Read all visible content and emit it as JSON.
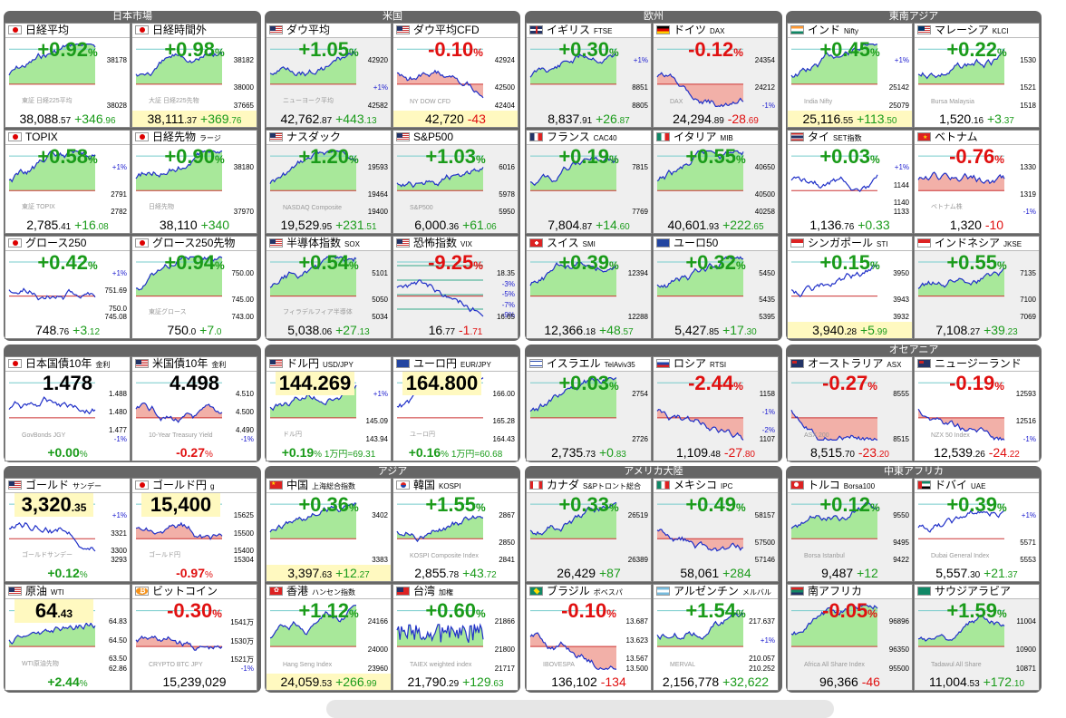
{
  "colors": {
    "up": "#1a9b1a",
    "down": "#e01010",
    "line": "#2030c8",
    "fill_green": "#a8e89a",
    "fill_red": "#f2b0a8",
    "yellow": "#fff9c0",
    "header_bg": "#666666"
  },
  "sections": [
    {
      "title": "日本市場"
    },
    {
      "title": "米国"
    },
    {
      "title": "欧州"
    },
    {
      "title": "東南アジア"
    },
    {
      "title": "オセアニア"
    },
    {
      "title": "アジア"
    },
    {
      "title": "アメリカ大陸"
    },
    {
      "title": "中東アフリカ"
    }
  ],
  "panels": [
    {
      "flag": "jp",
      "name": "日経平均",
      "sub": "",
      "pct": "+0.92",
      "unit": "%",
      "dir": "up",
      "left": "38,088",
      "leftsub": ".57",
      "chg": "+346",
      "chgsub": ".96",
      "chgdir": "up",
      "axis": [
        "38178",
        "38028"
      ],
      "wm": "東証 日経225平均",
      "shape": "g",
      "hiP": 1
    },
    {
      "flag": "jp",
      "name": "日経時間外",
      "sub": "",
      "pct": "+0.98",
      "unit": "%",
      "dir": "up",
      "left": "38,111",
      "leftsub": ".37",
      "chg": "+369",
      "chgsub": ".76",
      "chgdir": "up",
      "axis": [
        "38182",
        "38000",
        "37665"
      ],
      "wm": "大証 日経225先物",
      "shape": "g2",
      "yel": true
    },
    {
      "flag": "us",
      "name": "ダウ平均",
      "sub": "",
      "pct": "+1.05",
      "unit": "%",
      "dir": "up",
      "left": "42,762",
      "leftsub": ".87",
      "chg": "+443",
      "chgsub": ".13",
      "chgdir": "up",
      "axis": [
        "42920",
        "+1%",
        "42582"
      ],
      "wm": "ニューヨーク平均",
      "shape": "g",
      "grey": true
    },
    {
      "flag": "us",
      "name": "ダウ平均CFD",
      "sub": "",
      "pct": "-0.10",
      "unit": "%",
      "dir": "down",
      "left": "42,720",
      "leftsub": "",
      "chg": "-43",
      "chgsub": "",
      "chgdir": "down",
      "axis": [
        "42924",
        "42500",
        "42404"
      ],
      "wm": "NY DOW CFD",
      "shape": "r2",
      "yel": true
    },
    {
      "flag": "uk",
      "name": "イギリス",
      "sub": "FTSE",
      "pct": "+0.30",
      "unit": "%",
      "dir": "up",
      "left": "8,837",
      "leftsub": ".91",
      "chg": "+26",
      "chgsub": ".87",
      "chgdir": "up",
      "axis": [
        "+1%",
        "8851",
        "8805"
      ],
      "wm": "",
      "shape": "g",
      "grey": true
    },
    {
      "flag": "de",
      "name": "ドイツ",
      "sub": "DAX",
      "pct": "-0.12",
      "unit": "%",
      "dir": "down",
      "left": "24,294",
      "leftsub": ".89",
      "chg": "-28",
      "chgsub": ".69",
      "chgdir": "down",
      "axis": [
        "24354",
        "24212",
        "-1%"
      ],
      "wm": "DAX",
      "shape": "r",
      "grey": true
    },
    {
      "flag": "in",
      "name": "インド",
      "sub": "Nifty",
      "pct": "+0.45",
      "unit": "%",
      "dir": "up",
      "left": "25,116",
      "leftsub": ".55",
      "chg": "+113",
      "chgsub": ".50",
      "chgdir": "up",
      "axis": [
        "+1%",
        "25142",
        "25079"
      ],
      "wm": "India Nifty",
      "shape": "g",
      "yel": true
    },
    {
      "flag": "my",
      "name": "マレーシア",
      "sub": "KLCI",
      "pct": "+0.22",
      "unit": "%",
      "dir": "up",
      "left": "1,520",
      "leftsub": ".16",
      "chg": "+3",
      "chgsub": ".37",
      "chgdir": "up",
      "axis": [
        "1530",
        "1521",
        "1518"
      ],
      "wm": "Bursa Malaysia",
      "shape": "g"
    },
    {
      "flag": "jp",
      "name": "TOPIX",
      "sub": "",
      "pct": "+0.58",
      "unit": "%",
      "dir": "up",
      "left": "2,785",
      "leftsub": ".41",
      "chg": "+16",
      "chgsub": ".08",
      "chgdir": "up",
      "axis": [
        "+1%",
        "2791",
        "2782"
      ],
      "wm": "東証 TOPIX",
      "shape": "g"
    },
    {
      "flag": "jp",
      "name": "日経先物",
      "sub": "ラージ",
      "pct": "+0.90",
      "unit": "%",
      "dir": "up",
      "left": "38,110",
      "leftsub": "",
      "chg": "+340",
      "chgsub": "",
      "chgdir": "up",
      "axis": [
        "38180",
        "37970"
      ],
      "wm": "日経先物",
      "shape": "g3"
    },
    {
      "flag": "us",
      "name": "ナスダック",
      "sub": "",
      "pct": "+1.20",
      "unit": "%",
      "dir": "up",
      "left": "19,529",
      "leftsub": ".95",
      "chg": "+231",
      "chgsub": ".51",
      "chgdir": "up",
      "axis": [
        "19593",
        "19464",
        "19400"
      ],
      "wm": "NASDAQ Composite",
      "shape": "g",
      "grey": true
    },
    {
      "flag": "us",
      "name": "S&P500",
      "sub": "",
      "pct": "+1.03",
      "unit": "%",
      "dir": "up",
      "left": "6,000",
      "leftsub": ".36",
      "chg": "+61",
      "chgsub": ".06",
      "chgdir": "up",
      "axis": [
        "6016",
        "5978",
        "5950"
      ],
      "wm": "S&P500",
      "shape": "g",
      "grey": true
    },
    {
      "flag": "fr",
      "name": "フランス",
      "sub": "CAC40",
      "pct": "+0.19",
      "unit": "%",
      "dir": "up",
      "left": "7,804",
      "leftsub": ".87",
      "chg": "+14",
      "chgsub": ".60",
      "chgdir": "up",
      "axis": [
        "7815",
        "7769"
      ],
      "wm": "",
      "shape": "g",
      "grey": true
    },
    {
      "flag": "it",
      "name": "イタリア",
      "sub": "MIB",
      "pct": "+0.55",
      "unit": "%",
      "dir": "up",
      "left": "40,601",
      "leftsub": ".93",
      "chg": "+222",
      "chgsub": ".65",
      "chgdir": "up",
      "axis": [
        "40650",
        "40500",
        "40258"
      ],
      "wm": "",
      "shape": "g",
      "grey": true
    },
    {
      "flag": "th",
      "name": "タイ",
      "sub": "SET指数",
      "pct": "+0.03",
      "unit": "%",
      "dir": "up",
      "left": "1,136",
      "leftsub": ".76",
      "chg": "+0.33",
      "chgsub": "",
      "chgdir": "up",
      "axis": [
        "+1%",
        "1144",
        "1140",
        "1133"
      ],
      "wm": "",
      "shape": "w"
    },
    {
      "flag": "vn",
      "name": "ベトナム",
      "sub": "",
      "pct": "-0.76",
      "unit": "%",
      "dir": "down",
      "left": "1,320",
      "leftsub": "",
      "chg": "-10",
      "chgsub": "",
      "chgdir": "down",
      "axis": [
        "1330",
        "1319",
        "-1%"
      ],
      "wm": "ベトナム株",
      "shape": "r"
    },
    {
      "flag": "jp",
      "name": "グロース250",
      "sub": "",
      "pct": "+0.42",
      "unit": "%",
      "dir": "up",
      "left": "748",
      "leftsub": ".76",
      "chg": "+3",
      "chgsub": ".12",
      "chgdir": "up",
      "axis": [
        "+1%",
        "751.69",
        "750.0",
        "745.08"
      ],
      "wm": "",
      "shape": "w"
    },
    {
      "flag": "jp",
      "name": "グロース250先物",
      "sub": "",
      "pct": "+0.94",
      "unit": "%",
      "dir": "up",
      "left": "750",
      "leftsub": ".0",
      "chg": "+7",
      "chgsub": ".0",
      "chgdir": "up",
      "axis": [
        "750.00",
        "745.00",
        "743.00"
      ],
      "wm": "東証グロース",
      "shape": "g3"
    },
    {
      "flag": "us",
      "name": "半導体指数",
      "sub": "SOX",
      "pct": "+0.54",
      "unit": "%",
      "dir": "up",
      "left": "5,038",
      "leftsub": ".06",
      "chg": "+27",
      "chgsub": ".13",
      "chgdir": "up",
      "axis": [
        "5101",
        "5050",
        "5034"
      ],
      "wm": "フィラデルフィア半導体",
      "shape": "g",
      "grey": true
    },
    {
      "flag": "us",
      "name": "恐怖指数",
      "sub": "VIX",
      "pct": "-9.25",
      "unit": "%",
      "dir": "down",
      "left": "16",
      "leftsub": ".77",
      "chg": "-1",
      "chgsub": ".71",
      "chgdir": "down",
      "axis": [
        "18.35",
        "-3%",
        "-5%",
        "-7%",
        "-9%",
        "16.65"
      ],
      "wm": "",
      "shape": "v",
      "grey": true
    },
    {
      "flag": "ch",
      "name": "スイス",
      "sub": "SMI",
      "pct": "+0.39",
      "unit": "%",
      "dir": "up",
      "left": "12,366",
      "leftsub": ".18",
      "chg": "+48",
      "chgsub": ".57",
      "chgdir": "up",
      "axis": [
        "12394",
        "12288"
      ],
      "wm": "",
      "shape": "g",
      "grey": true
    },
    {
      "flag": "eu",
      "name": "ユーロ50",
      "sub": "",
      "pct": "+0.32",
      "unit": "%",
      "dir": "up",
      "left": "5,427",
      "leftsub": ".85",
      "chg": "+17",
      "chgsub": ".30",
      "chgdir": "up",
      "axis": [
        "5450",
        "5435",
        "5395"
      ],
      "wm": "",
      "shape": "g",
      "grey": true
    },
    {
      "flag": "sg",
      "name": "シンガポール",
      "sub": "STI",
      "pct": "+0.15",
      "unit": "%",
      "dir": "up",
      "left": "3,940",
      "leftsub": ".28",
      "chg": "+5",
      "chgsub": ".99",
      "chgdir": "up",
      "axis": [
        "3950",
        "3943",
        "3932"
      ],
      "wm": "",
      "shape": "w",
      "yel": true
    },
    {
      "flag": "id",
      "name": "インドネシア",
      "sub": "JKSE",
      "pct": "+0.55",
      "unit": "%",
      "dir": "up",
      "left": "7,108",
      "leftsub": ".27",
      "chg": "+39",
      "chgsub": ".23",
      "chgdir": "up",
      "axis": [
        "7135",
        "7100",
        "7069"
      ],
      "wm": "",
      "shape": "g",
      "grey": true
    },
    {
      "flag": "jp",
      "name": "日本国債10年",
      "sub": "金利",
      "pct": "1.478",
      "unit": "",
      "dir": "black",
      "left": "",
      "leftsub": "",
      "chg": "+0.00",
      "chgsub": "%",
      "chgdir": "up",
      "axis": [
        "1.488",
        "1.480",
        "1.477",
        "-1%"
      ],
      "wm": "GovBonds JGY",
      "shape": "w"
    },
    {
      "flag": "us",
      "name": "米国債10年",
      "sub": "金利",
      "pct": "4.498",
      "unit": "",
      "dir": "black",
      "left": "",
      "leftsub": "",
      "chg": "-0.27",
      "chgsub": "%",
      "chgdir": "down",
      "axis": [
        "4.510",
        "4.500",
        "4.490",
        "-1%"
      ],
      "wm": "10-Year Treasury Yield",
      "shape": "r3"
    },
    {
      "flag": "us",
      "name": "ドル円",
      "sub": "USD/JPY",
      "pct": "144.269",
      "unit": "",
      "dir": "black",
      "left": "",
      "leftsub": "",
      "chg": "+0.19",
      "chgsub": "% 1万円=69.31",
      "chgdir": "up",
      "axis": [
        "+1%",
        "145.09",
        "143.94"
      ],
      "wm": "ドル円",
      "shape": "g",
      "bigyel": true
    },
    {
      "flag": "eu",
      "name": "ユーロ円",
      "sub": "EUR/JPY",
      "pct": "164.800",
      "unit": "",
      "dir": "black",
      "left": "",
      "leftsub": "",
      "chg": "+0.16",
      "chgsub": "% 1万円=60.68",
      "chgdir": "up",
      "axis": [
        "166.00",
        "165.28",
        "164.43"
      ],
      "wm": "ユーロ円",
      "shape": "w",
      "bigyel": true
    },
    {
      "flag": "il",
      "name": "イスラエル",
      "sub": "TelAviv35",
      "pct": "+0.03",
      "unit": "%",
      "dir": "up",
      "left": "2,735",
      "leftsub": ".73",
      "chg": "+0",
      "chgsub": ".83",
      "chgdir": "up",
      "axis": [
        "2754",
        "2726"
      ],
      "wm": "",
      "shape": "g",
      "grey": true
    },
    {
      "flag": "ru",
      "name": "ロシア",
      "sub": "RTSI",
      "pct": "-2.44",
      "unit": "%",
      "dir": "down",
      "left": "1,109",
      "leftsub": ".48",
      "chg": "-27",
      "chgsub": ".80",
      "chgdir": "down",
      "axis": [
        "1158",
        "-1%",
        "-2%",
        "1107"
      ],
      "wm": "",
      "shape": "r",
      "grey": true
    },
    {
      "flag": "au",
      "name": "オーストラリア",
      "sub": "ASX",
      "pct": "-0.27",
      "unit": "%",
      "dir": "down",
      "left": "8,515",
      "leftsub": ".70",
      "chg": "-23",
      "chgsub": ".20",
      "chgdir": "down",
      "axis": [
        "8555",
        "8515"
      ],
      "wm": "ASX 200",
      "shape": "r",
      "grey": true
    },
    {
      "flag": "nz",
      "name": "ニュージーランド",
      "sub": "",
      "pct": "-0.19",
      "unit": "%",
      "dir": "down",
      "left": "12,539",
      "leftsub": ".26",
      "chg": "-24",
      "chgsub": ".22",
      "chgdir": "down",
      "axis": [
        "12593",
        "12516",
        "-1%"
      ],
      "wm": "NZX 50 Index",
      "shape": "r"
    },
    {
      "flag": "us",
      "name": "ゴールド",
      "sub": "サンデー",
      "pct": "3,320",
      "unit": ".35",
      "dir": "black",
      "left": "",
      "leftsub": "",
      "chg": "+0.12",
      "chgsub": "%",
      "chgdir": "up",
      "axis": [
        "+1%",
        "3321",
        "3300",
        "3293"
      ],
      "wm": "ゴールドサンデー",
      "shape": "w",
      "bigyel": true
    },
    {
      "flag": "jp",
      "name": "ゴールド円",
      "sub": "g",
      "pct": "15,400",
      "unit": "",
      "dir": "black",
      "left": "",
      "leftsub": "",
      "chg": "-0.97",
      "chgsub": "%",
      "chgdir": "down",
      "axis": [
        "15625",
        "15500",
        "15400",
        "15304"
      ],
      "wm": "ゴールド円",
      "shape": "r3",
      "bigyel": true
    },
    {
      "flag": "cn",
      "name": "中国",
      "sub": "上海総合指数",
      "pct": "+0.36",
      "unit": "%",
      "dir": "up",
      "left": "3,397",
      "leftsub": ".63",
      "chg": "+12",
      "chgsub": ".27",
      "chgdir": "up",
      "axis": [
        "3402",
        "3383"
      ],
      "wm": "",
      "shape": "g",
      "yel": true
    },
    {
      "flag": "kr",
      "name": "韓国",
      "sub": "KOSPI",
      "pct": "+1.55",
      "unit": "%",
      "dir": "up",
      "left": "2,855",
      "leftsub": ".78",
      "chg": "+43",
      "chgsub": ".72",
      "chgdir": "up",
      "axis": [
        "2867",
        "2850",
        "2841"
      ],
      "wm": "KOSPI Composite Index",
      "shape": "g"
    },
    {
      "flag": "ca",
      "name": "カナダ",
      "sub": "S&Pトロント総合",
      "pct": "+0.33",
      "unit": "%",
      "dir": "up",
      "left": "26,429",
      "leftsub": "",
      "chg": "+87",
      "chgsub": "",
      "chgdir": "up",
      "axis": [
        "26519",
        "26389"
      ],
      "wm": "",
      "shape": "g",
      "grey": true
    },
    {
      "flag": "mx",
      "name": "メキシコ",
      "sub": "IPC",
      "pct": "+0.49",
      "unit": "%",
      "dir": "up",
      "left": "58,061",
      "leftsub": "",
      "chg": "+284",
      "chgsub": "",
      "chgdir": "up",
      "axis": [
        "58157",
        "57500",
        "57146"
      ],
      "wm": "",
      "shape": "r",
      "grey": true
    },
    {
      "flag": "tr",
      "name": "トルコ",
      "sub": "Borsa100",
      "pct": "+0.12",
      "unit": "%",
      "dir": "up",
      "left": "9,487",
      "leftsub": "",
      "chg": "+12",
      "chgsub": "",
      "chgdir": "up",
      "axis": [
        "9550",
        "9495",
        "9422"
      ],
      "wm": "Borsa Istanbul",
      "shape": "g",
      "grey": true
    },
    {
      "flag": "ae",
      "name": "ドバイ",
      "sub": "UAE",
      "pct": "+0.39",
      "unit": "%",
      "dir": "up",
      "left": "5,557",
      "leftsub": ".30",
      "chg": "+21",
      "chgsub": ".37",
      "chgdir": "up",
      "axis": [
        "+1%",
        "5571",
        "5553"
      ],
      "wm": "Dubai General Index",
      "shape": "w"
    },
    {
      "flag": "us",
      "name": "原油",
      "sub": "WTI",
      "pct": "64",
      "unit": ".43",
      "dir": "black",
      "left": "",
      "leftsub": "",
      "chg": "+2.44",
      "chgsub": "%",
      "chgdir": "up",
      "axis": [
        "64.83",
        "64.50",
        "63.50",
        "62.86"
      ],
      "wm": "WTI原油先物",
      "shape": "g",
      "bigyel": true
    },
    {
      "flag": "btc",
      "name": "ビットコイン",
      "sub": "",
      "pct": "-0.30",
      "unit": "%",
      "dir": "down",
      "left": "15,239,029",
      "leftsub": "",
      "chg": "",
      "chgsub": "",
      "chgdir": "down",
      "axis": [
        "1541万",
        "1530万",
        "1521万",
        "-1%"
      ],
      "wm": "CRYPTO BTC JPY",
      "shape": "r3",
      "yel2": true
    },
    {
      "flag": "hk",
      "name": "香港",
      "sub": "ハンセン指数",
      "pct": "+1.12",
      "unit": "%",
      "dir": "up",
      "left": "24,059",
      "leftsub": ".53",
      "chg": "+266",
      "chgsub": ".99",
      "chgdir": "up",
      "axis": [
        "24166",
        "24000",
        "23960"
      ],
      "wm": "Hang Seng Index",
      "shape": "g",
      "yel": true
    },
    {
      "flag": "tw",
      "name": "台湾",
      "sub": "加権",
      "pct": "+0.60",
      "unit": "%",
      "dir": "up",
      "left": "21,790",
      "leftsub": ".29",
      "chg": "+129",
      "chgsub": ".63",
      "chgdir": "up",
      "axis": [
        "21866",
        "21800",
        "21717"
      ],
      "wm": "TAIEX weighted index",
      "shape": "tw"
    },
    {
      "flag": "br",
      "name": "ブラジル",
      "sub": "ボベスパ",
      "pct": "-0.10",
      "unit": "%",
      "dir": "down",
      "left": "136,102",
      "leftsub": "",
      "chg": "-134",
      "chgsub": "",
      "chgdir": "down",
      "axis": [
        "13.687",
        "13.623",
        "13.567",
        "13.500"
      ],
      "wm": "IBOVESPA",
      "shape": "r"
    },
    {
      "flag": "ar",
      "name": "アルゼンチン",
      "sub": "メルバル",
      "pct": "+1.54",
      "unit": "%",
      "dir": "up",
      "left": "2,156,778",
      "leftsub": "",
      "chg": "+32,622",
      "chgsub": "",
      "chgdir": "up",
      "axis": [
        "217.637",
        "+1%",
        "210.057",
        "210.252"
      ],
      "wm": "MERVAL",
      "shape": "g"
    },
    {
      "flag": "za",
      "name": "南アフリカ",
      "sub": "",
      "pct": "-0.05",
      "unit": "%",
      "dir": "down",
      "left": "96,366",
      "leftsub": "",
      "chg": "-46",
      "chgsub": "",
      "chgdir": "down",
      "axis": [
        "96896",
        "96350",
        "95500"
      ],
      "wm": "Africa All Share Index",
      "shape": "g",
      "grey": true
    },
    {
      "flag": "sa",
      "name": "サウジアラビア",
      "sub": "",
      "pct": "+1.59",
      "unit": "%",
      "dir": "up",
      "left": "11,004",
      "leftsub": ".53",
      "chg": "+172",
      "chgsub": ".10",
      "chgdir": "up",
      "axis": [
        "11004",
        "10900",
        "10871"
      ],
      "wm": "Tadawul All Share",
      "shape": "g",
      "grey": true
    }
  ]
}
